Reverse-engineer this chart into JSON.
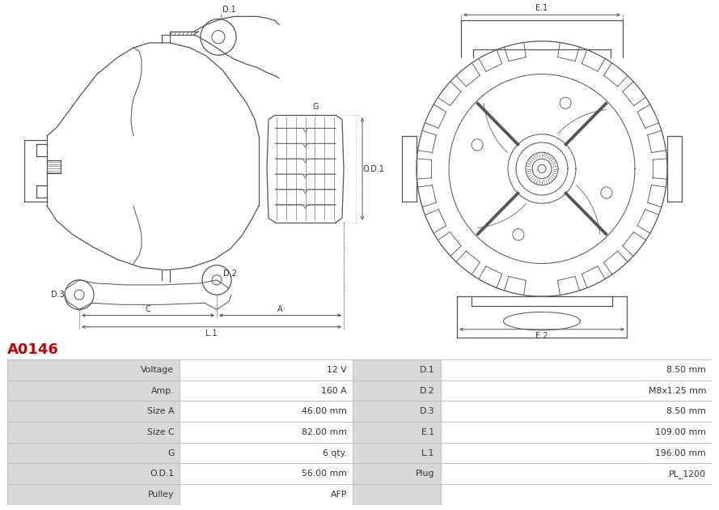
{
  "title": "A0146",
  "title_color": "#cc0000",
  "bg_color": "#ffffff",
  "line_color": "#555555",
  "table_border_color": "#bbbbbb",
  "label_bg": "#d8d8d8",
  "value_bg": "#ffffff",
  "rows": [
    [
      "Voltage",
      "12 V",
      "D.1",
      "8.50 mm"
    ],
    [
      "Amp.",
      "160 A",
      "D.2",
      "M8x1.25 mm"
    ],
    [
      "Size A",
      "46.00 mm",
      "D.3",
      "8.50 mm"
    ],
    [
      "Size C",
      "82.00 mm",
      "E.1",
      "109.00 mm"
    ],
    [
      "G",
      "6 qty.",
      "L.1",
      "196.00 mm"
    ],
    [
      "O.D.1",
      "56.00 mm",
      "Plug",
      "PL_1200"
    ],
    [
      "Pulley",
      "AFP",
      "",
      ""
    ]
  ]
}
